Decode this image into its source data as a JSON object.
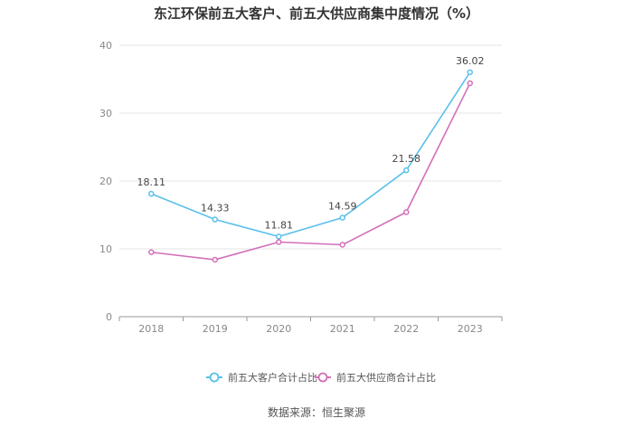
{
  "source_text": "数据来源：恒生聚源",
  "chart_data": {
    "type": "line",
    "title": "东江环保前五大客户、前五大供应商集中度情况（%）",
    "xlabel": "",
    "ylabel": "",
    "x": [
      "2018",
      "2019",
      "2020",
      "2021",
      "2022",
      "2023"
    ],
    "ylim": [
      0,
      40
    ],
    "yticks": [
      0,
      10,
      20,
      30,
      40
    ],
    "grid": true,
    "legend_position": "bottom",
    "series": [
      {
        "name": "前五大客户合计占比",
        "color": "#5bc0eb",
        "values": [
          18.11,
          14.33,
          11.81,
          14.59,
          21.58,
          36.02
        ],
        "labels": [
          "18.11",
          "14.33",
          "11.81",
          "14.59",
          "21.58",
          "36.02"
        ]
      },
      {
        "name": "前五大供应商合计占比",
        "color": "#d36fb9",
        "values": [
          9.5,
          8.4,
          11.0,
          10.6,
          15.4,
          34.4
        ]
      }
    ]
  }
}
